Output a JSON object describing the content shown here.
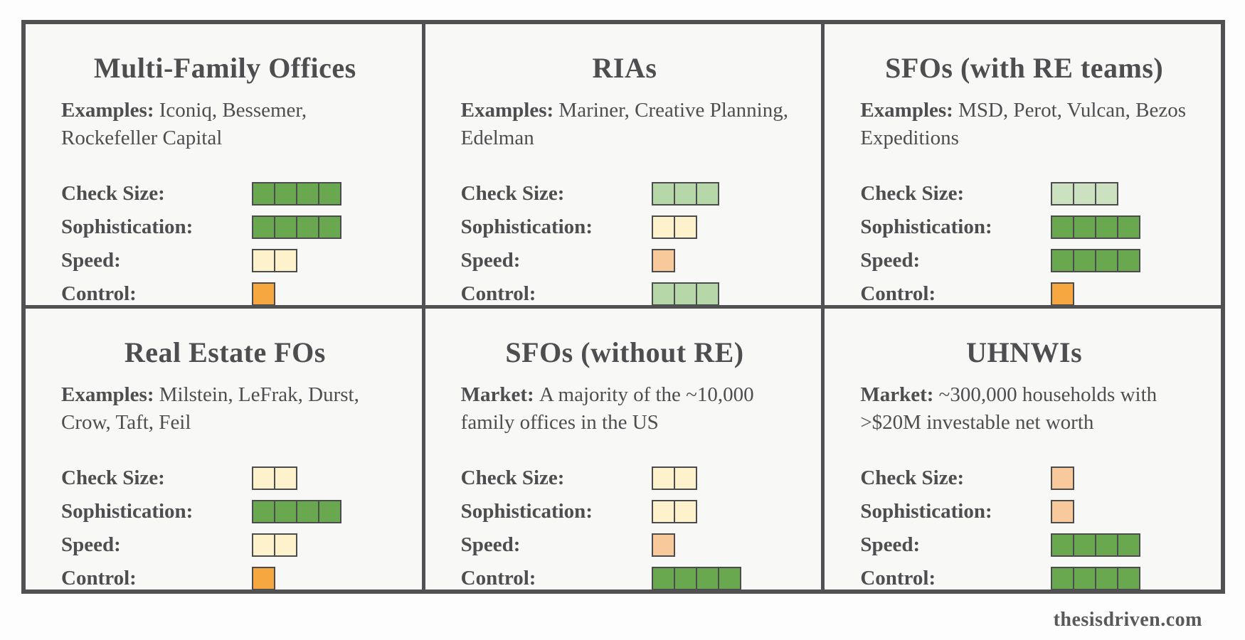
{
  "palette": {
    "dark_green": "#6aa84f",
    "light_green": "#b6d7a8",
    "pale_green": "#cbe1bf",
    "cream": "#fdf2cc",
    "peach": "#f8ca9b",
    "orange": "#f7a740"
  },
  "footer": {
    "site_label": "thesisdriven.com"
  },
  "cards": [
    {
      "title": "Multi-Family Offices",
      "desc_label": "Examples:",
      "desc_text": "Iconiq, Bessemer, Rockefeller Capital",
      "ratings": [
        {
          "label": "Check Size:",
          "value": 4,
          "color": "dark_green"
        },
        {
          "label": "Sophistication:",
          "value": 4,
          "color": "dark_green"
        },
        {
          "label": "Speed:",
          "value": 2,
          "color": "cream"
        },
        {
          "label": "Control:",
          "value": 1,
          "color": "orange"
        }
      ]
    },
    {
      "title": "RIAs",
      "desc_label": "Examples:",
      "desc_text": "Mariner, Creative Planning, Edelman",
      "ratings": [
        {
          "label": "Check Size:",
          "value": 3,
          "color": "light_green"
        },
        {
          "label": "Sophistication:",
          "value": 2,
          "color": "cream"
        },
        {
          "label": "Speed:",
          "value": 1,
          "color": "peach"
        },
        {
          "label": "Control:",
          "value": 3,
          "color": "light_green"
        }
      ]
    },
    {
      "title": "SFOs (with RE teams)",
      "desc_label": "Examples:",
      "desc_text": "MSD, Perot, Vulcan, Bezos Expeditions",
      "ratings": [
        {
          "label": "Check Size:",
          "value": 3,
          "color": "pale_green"
        },
        {
          "label": "Sophistication:",
          "value": 4,
          "color": "dark_green"
        },
        {
          "label": "Speed:",
          "value": 4,
          "color": "dark_green"
        },
        {
          "label": "Control:",
          "value": 1,
          "color": "orange"
        }
      ]
    },
    {
      "title": "Real Estate FOs",
      "desc_label": "Examples:",
      "desc_text": "Milstein, LeFrak, Durst, Crow, Taft, Feil",
      "ratings": [
        {
          "label": "Check Size:",
          "value": 2,
          "color": "cream"
        },
        {
          "label": "Sophistication:",
          "value": 4,
          "color": "dark_green"
        },
        {
          "label": "Speed:",
          "value": 2,
          "color": "cream"
        },
        {
          "label": "Control:",
          "value": 1,
          "color": "orange"
        }
      ]
    },
    {
      "title": "SFOs (without RE)",
      "desc_label": "Market:",
      "desc_text": "A majority of the ~10,000 family offices in the US",
      "ratings": [
        {
          "label": "Check Size:",
          "value": 2,
          "color": "cream"
        },
        {
          "label": "Sophistication:",
          "value": 2,
          "color": "cream"
        },
        {
          "label": "Speed:",
          "value": 1,
          "color": "peach"
        },
        {
          "label": "Control:",
          "value": 4,
          "color": "dark_green"
        }
      ]
    },
    {
      "title": "UHNWIs",
      "desc_label": "Market:",
      "desc_text": "~300,000 households with >$20M investable net worth",
      "ratings": [
        {
          "label": "Check Size:",
          "value": 1,
          "color": "peach"
        },
        {
          "label": "Sophistication:",
          "value": 1,
          "color": "peach"
        },
        {
          "label": "Speed:",
          "value": 4,
          "color": "dark_green"
        },
        {
          "label": "Control:",
          "value": 4,
          "color": "dark_green"
        }
      ]
    }
  ]
}
